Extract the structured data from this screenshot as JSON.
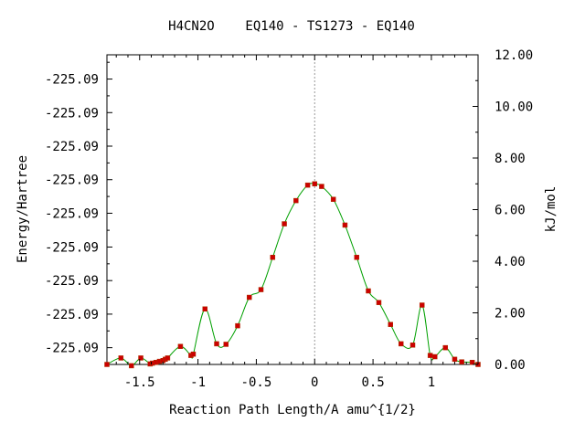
{
  "chart_data": {
    "type": "line",
    "title": "H4CN2O    EQ140 - TS1273 - EQ140",
    "xlabel": "Reaction Path Length/A amu^{1/2}",
    "ylabel_left": "Energy/Hartree",
    "ylabel_right": "kJ/mol",
    "xlim": [
      -1.78,
      1.4
    ],
    "ylim": [
      0,
      12
    ],
    "x_ticks": [
      {
        "value": -1.5,
        "label": "-1.5"
      },
      {
        "value": -1.0,
        "label": "-1"
      },
      {
        "value": -0.5,
        "label": "-0.5"
      },
      {
        "value": 0.0,
        "label": "0"
      },
      {
        "value": 0.5,
        "label": "0.5"
      },
      {
        "value": 1.0,
        "label": "1"
      }
    ],
    "y_ticks_right": [
      {
        "value": 0,
        "label": "0.00"
      },
      {
        "value": 2,
        "label": "2.00"
      },
      {
        "value": 4,
        "label": "4.00"
      },
      {
        "value": 6,
        "label": "6.00"
      },
      {
        "value": 8,
        "label": "8.00"
      },
      {
        "value": 10,
        "label": "10.00"
      },
      {
        "value": 12,
        "label": "12.00"
      }
    ],
    "y_ticks_left": [
      {
        "value": 0.65,
        "label": "-225.09"
      },
      {
        "value": 1.95,
        "label": "-225.09"
      },
      {
        "value": 3.25,
        "label": "-225.09"
      },
      {
        "value": 4.55,
        "label": "-225.09"
      },
      {
        "value": 5.86,
        "label": "-225.09"
      },
      {
        "value": 7.16,
        "label": "-225.09"
      },
      {
        "value": 8.46,
        "label": "-225.09"
      },
      {
        "value": 9.76,
        "label": "-225.09"
      },
      {
        "value": 11.06,
        "label": "-225.09"
      }
    ],
    "ts_x": 0.0,
    "colors": {
      "line": "#00a000",
      "marker": "#cc0000",
      "ts_line": "#999999"
    },
    "series": [
      {
        "x": [
          -1.78,
          -1.66,
          -1.57,
          -1.49,
          -1.41,
          -1.39,
          -1.36,
          -1.33,
          -1.3,
          -1.28,
          -1.26,
          -1.15,
          -1.06,
          -1.04,
          -0.94,
          -0.84,
          -0.76,
          -0.66,
          -0.56,
          -0.46,
          -0.36,
          -0.26,
          -0.16,
          -0.06,
          0.0,
          0.06,
          0.16,
          0.26,
          0.36,
          0.46,
          0.55,
          0.65,
          0.74,
          0.84,
          0.92,
          0.99,
          1.03,
          1.12,
          1.2,
          1.26,
          1.35,
          1.4
        ],
        "y": [
          0.0,
          0.25,
          -0.05,
          0.25,
          0.02,
          0.05,
          0.08,
          0.12,
          0.15,
          0.2,
          0.25,
          0.7,
          0.35,
          0.4,
          2.15,
          0.8,
          0.78,
          1.5,
          2.6,
          2.9,
          4.15,
          5.45,
          6.35,
          6.95,
          7.0,
          6.9,
          6.4,
          5.4,
          4.15,
          2.85,
          2.4,
          1.55,
          0.8,
          0.75,
          2.3,
          0.35,
          0.3,
          0.65,
          0.2,
          0.1,
          0.08,
          0.0
        ]
      }
    ]
  }
}
